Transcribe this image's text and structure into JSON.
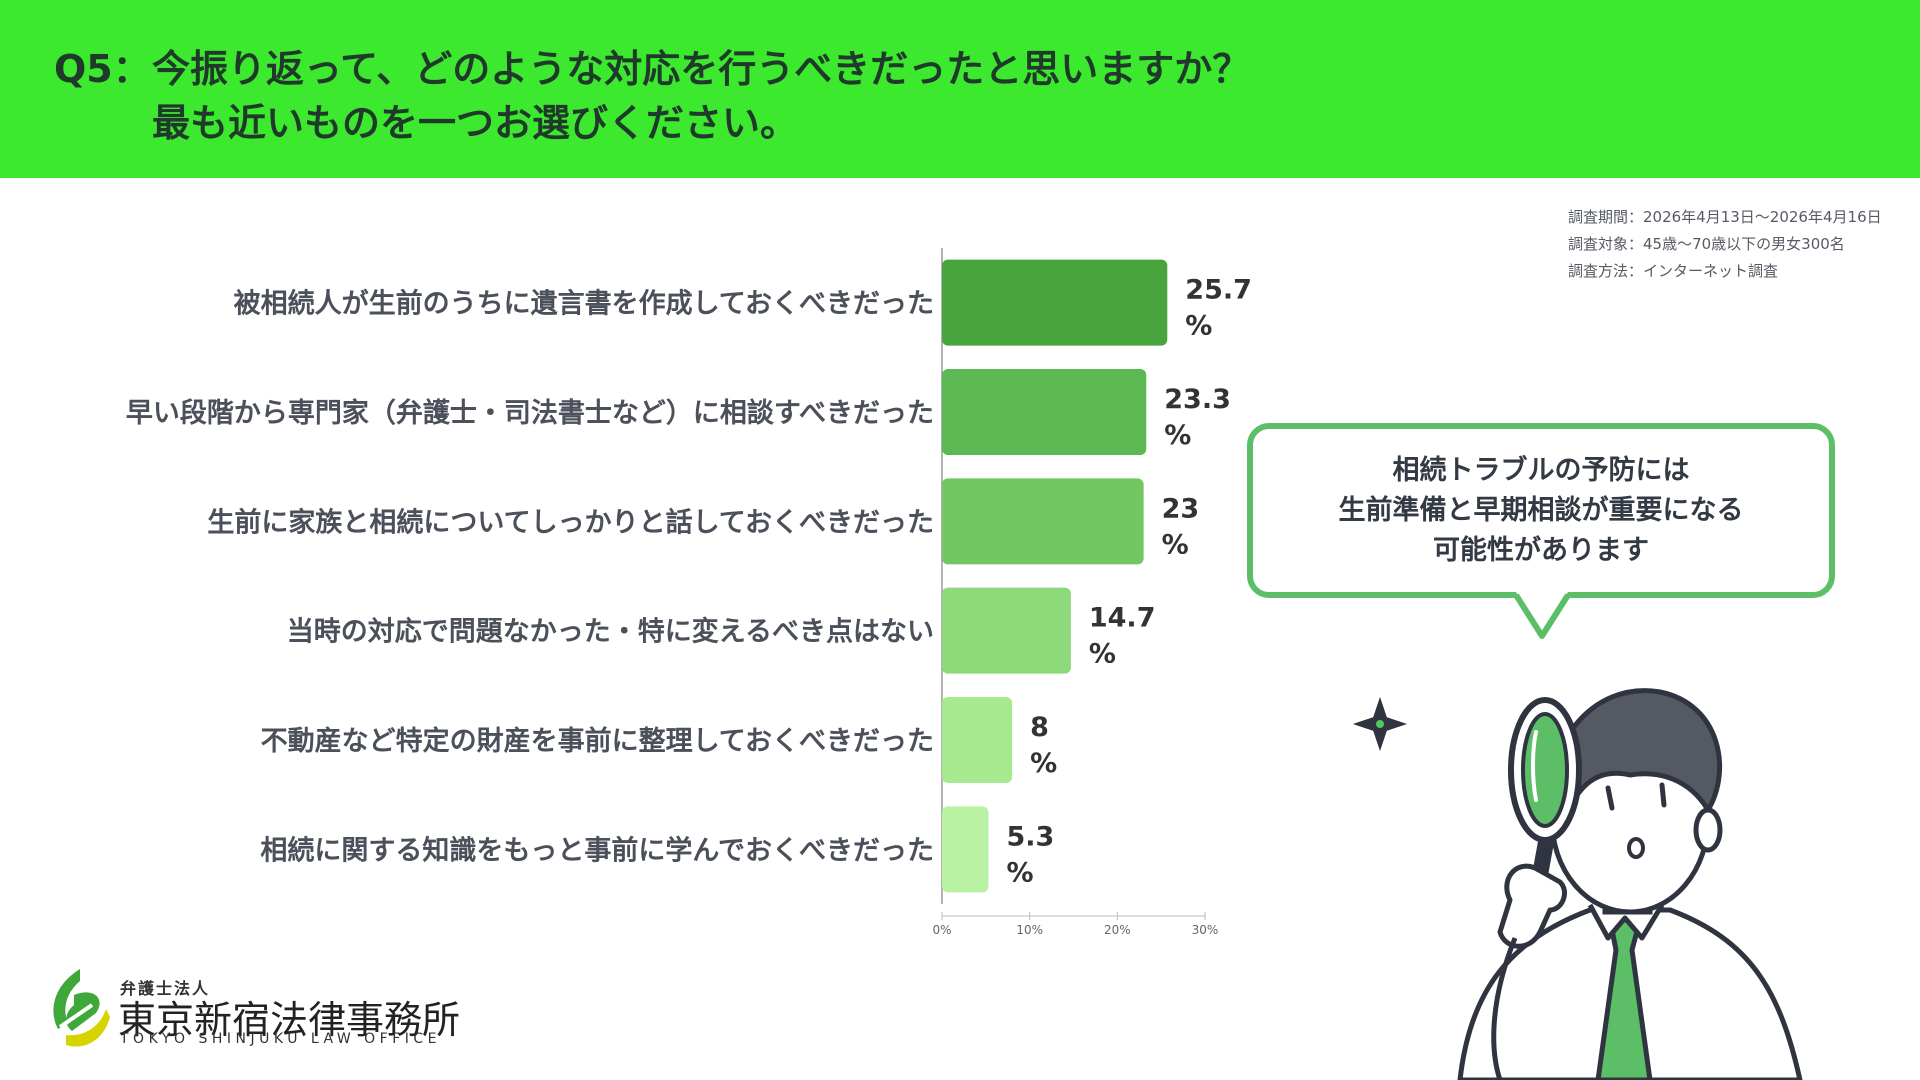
{
  "header": {
    "q_label": "Q5：",
    "question_line1": "今振り返って、どのような対応を行うべきだったと思いますか？",
    "question_line2": "最も近いものを一つお選びください。"
  },
  "survey_info": {
    "period": "調査期間：2026年4月13日〜2026年4月16日",
    "target": "調査対象：45歳〜70歳以下の男女300名",
    "method": "調査方法：インターネット調査"
  },
  "chart_data": {
    "type": "bar",
    "orientation": "horizontal",
    "categories": [
      "被相続人が生前のうちに遺言書を作成しておくべきだった",
      "早い段階から専門家（弁護士・司法書士など）に相談すべきだった",
      "生前に家族と相続についてしっかりと話しておくべきだった",
      "当時の対応で問題なかった・特に変えるべき点はない",
      "不動産など特定の財産を事前に整理しておくべきだった",
      "相続に関する知識をもっと事前に学んでおくべきだった"
    ],
    "values": [
      25.7,
      23.3,
      23,
      14.7,
      8,
      5.3
    ],
    "value_labels": [
      "25.7",
      "23.3",
      "23",
      "14.7",
      "8",
      "5.3"
    ],
    "unit": "%",
    "xlim": [
      0,
      30
    ],
    "xticks": [
      "0%",
      "10%",
      "20%",
      "30%"
    ],
    "colors": [
      "#48a43c",
      "#5cb852",
      "#72c763",
      "#8ed97a",
      "#a6e98f",
      "#b9f2a2"
    ],
    "grid": false,
    "legend": "none"
  },
  "bubble": {
    "line1": "相続トラブルの予防には",
    "line2": "生前準備と早期相談が重要になる",
    "line3": "可能性があります"
  },
  "logo": {
    "top": "弁護士法人",
    "main": "東京新宿法律事務所",
    "sub": "TOKYO SHINJUKU LAW OFFICE"
  },
  "colors": {
    "header_bg": "#3de92e",
    "accent_green": "#5cbf67"
  }
}
